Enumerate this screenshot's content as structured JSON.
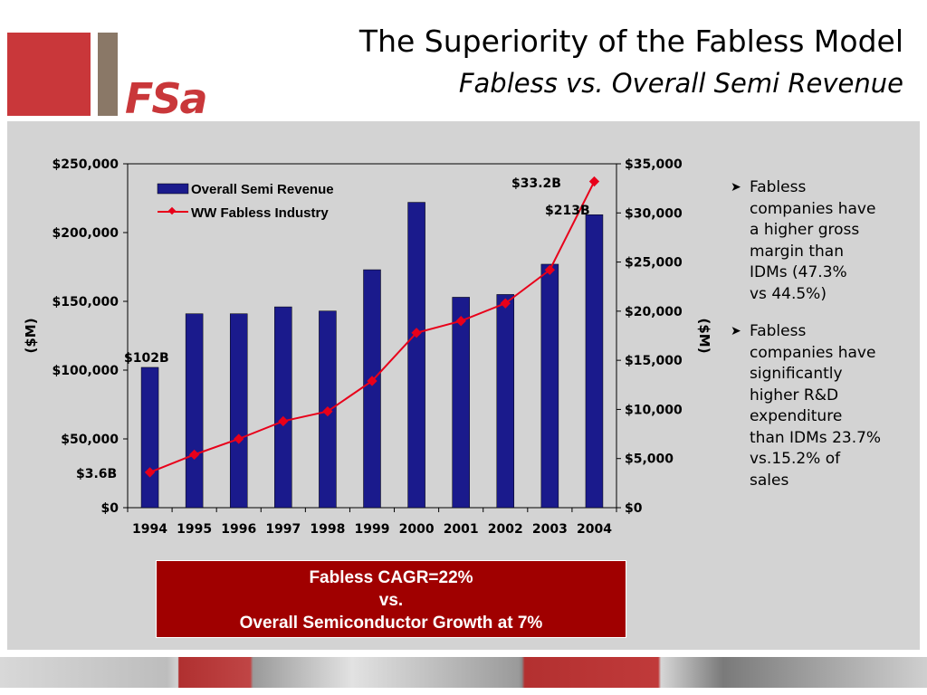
{
  "header": {
    "logo_text": "FSa",
    "title": "The Superiority of the Fabless Model",
    "subtitle": "Fabless vs. Overall Semi Revenue"
  },
  "colors": {
    "bar": "#1a1a8c",
    "line": "#e8001a",
    "panel": "#d3d3d3",
    "cagr_box": "#a00000",
    "logo_red": "#c9373a",
    "logo_brown": "#8a7867"
  },
  "chart_data": {
    "type": "bar",
    "categories": [
      "1994",
      "1995",
      "1996",
      "1997",
      "1998",
      "1999",
      "2000",
      "2001",
      "2002",
      "2003",
      "2004"
    ],
    "series": [
      {
        "name": "Overall Semi Revenue",
        "type": "bar",
        "axis": "left",
        "values": [
          102000,
          141000,
          141000,
          146000,
          143000,
          173000,
          222000,
          153000,
          155000,
          177000,
          213000
        ]
      },
      {
        "name": "WW Fabless Industry",
        "type": "line",
        "axis": "right",
        "values": [
          3600,
          5400,
          7000,
          8800,
          9800,
          12900,
          17800,
          19000,
          20800,
          24200,
          33200
        ]
      }
    ],
    "y_left": {
      "label": "($M)",
      "range": [
        0,
        250000
      ],
      "ticks": [
        "$250,000",
        "$200,000",
        "$150,000",
        "$100,000",
        "$50,000",
        "$0"
      ]
    },
    "y_right": {
      "label": "($M)",
      "range": [
        0,
        35000
      ],
      "ticks": [
        "$35,000",
        "$30,000",
        "$25,000",
        "$20,000",
        "$15,000",
        "$10,000",
        "$5,000",
        "$0"
      ]
    },
    "annotations": [
      "$102B",
      "$3.6B",
      "$33.2B",
      "$213B"
    ],
    "legend_position": "top-left",
    "grid": false
  },
  "bullets": [
    {
      "lines": [
        "Fabless",
        "companies have",
        "a higher gross",
        "margin than",
        "IDMs (47.3%",
        "vs 44.5%)"
      ]
    },
    {
      "lines": [
        "Fabless",
        "companies have",
        "significantly",
        "higher R&D",
        "expenditure",
        "than IDMs 23.7%",
        "vs.15.2% of",
        "sales"
      ]
    }
  ],
  "cagr_box": {
    "line1": "Fabless CAGR=22%",
    "line2": "vs.",
    "line3": "Overall Semiconductor Growth at 7%"
  }
}
